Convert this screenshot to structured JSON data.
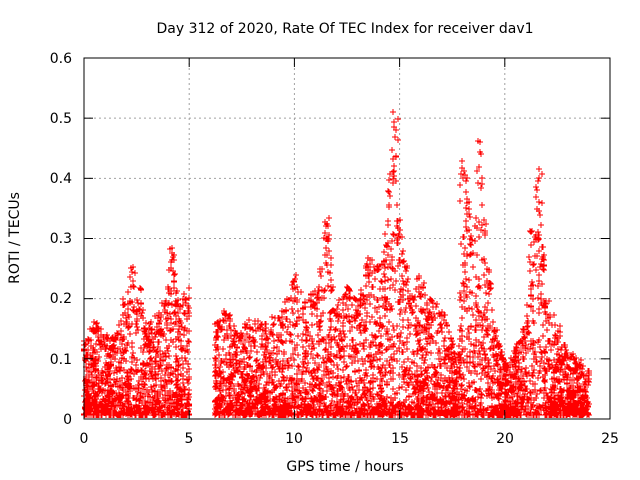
{
  "chart_data": {
    "type": "scatter",
    "title": "Day 312 of 2020, Rate Of TEC Index for receiver dav1",
    "xlabel": "GPS time / hours",
    "ylabel": "ROTI / TECUs",
    "xlim": [
      0,
      25
    ],
    "ylim": [
      0,
      0.6
    ],
    "x_ticks": [
      "0",
      "5",
      "10",
      "15",
      "20",
      "25"
    ],
    "y_ticks": [
      "0",
      "0.1",
      "0.2",
      "0.3",
      "0.4",
      "0.5",
      "0.6"
    ],
    "grid": true,
    "marker": "plus",
    "color": "#ff0000",
    "envelope": {
      "hours": [
        0.0,
        0.5,
        1.0,
        1.5,
        2.0,
        2.3,
        2.6,
        3.0,
        3.5,
        4.0,
        4.2,
        4.5,
        5.0,
        5.2,
        6.0,
        6.3,
        6.8,
        7.2,
        7.8,
        8.5,
        9.5,
        10.0,
        10.5,
        11.0,
        11.5,
        12.0,
        12.5,
        13.0,
        13.5,
        14.0,
        14.3,
        14.6,
        14.8,
        15.0,
        15.5,
        16.0,
        16.5,
        17.0,
        17.5,
        17.8,
        18.0,
        18.2,
        18.5,
        18.8,
        19.0,
        19.2,
        19.5,
        19.9,
        20.1,
        20.5,
        21.0,
        21.3,
        21.6,
        21.8,
        22.0,
        22.5,
        23.0,
        23.5,
        24.0
      ],
      "max_roti": [
        0.13,
        0.17,
        0.14,
        0.14,
        0.2,
        0.26,
        0.22,
        0.15,
        0.18,
        0.22,
        0.29,
        0.2,
        0.22,
        0.0,
        0.0,
        0.16,
        0.19,
        0.15,
        0.17,
        0.16,
        0.19,
        0.25,
        0.2,
        0.22,
        0.34,
        0.2,
        0.22,
        0.2,
        0.27,
        0.26,
        0.3,
        0.45,
        0.52,
        0.35,
        0.22,
        0.25,
        0.2,
        0.19,
        0.13,
        0.11,
        0.44,
        0.4,
        0.3,
        0.47,
        0.36,
        0.25,
        0.15,
        0.11,
        0.09,
        0.12,
        0.16,
        0.32,
        0.42,
        0.3,
        0.2,
        0.16,
        0.12,
        0.1,
        0.08
      ]
    },
    "data_gap_hours": [
      5.0,
      6.2
    ]
  }
}
